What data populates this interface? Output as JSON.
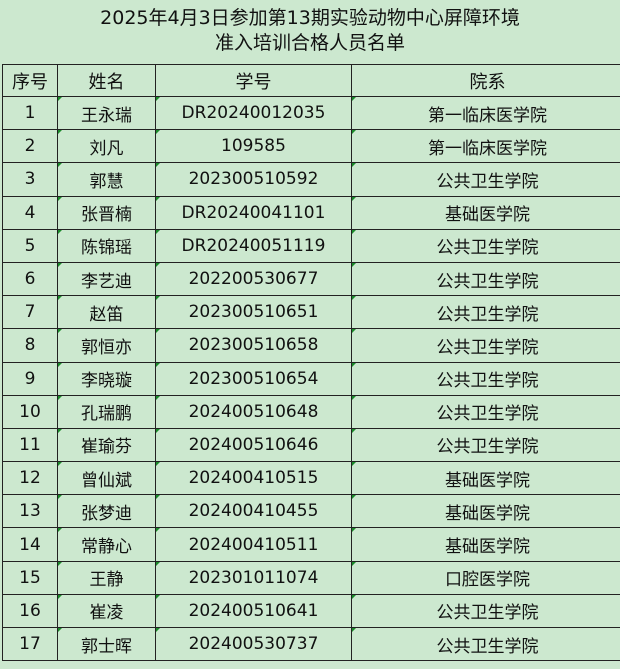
{
  "title_line1": "2025年4月3日参加第13期实验动物中心屏障环境",
  "title_line2": "准入培训合格人员名单",
  "headers": [
    "序号",
    "姓名",
    "学号",
    "院系"
  ],
  "rows": [
    [
      "1",
      "王永瑞",
      "DR20240012035",
      "第一临床医学院"
    ],
    [
      "2",
      "刘凡",
      "109585",
      "第一临床医学院"
    ],
    [
      "3",
      "郭慧",
      "202300510592",
      "公共卫生学院"
    ],
    [
      "4",
      "张晋楠",
      "DR20240041101",
      "基础医学院"
    ],
    [
      "5",
      "陈锦瑶",
      "DR20240051119",
      "公共卫生学院"
    ],
    [
      "6",
      "李艺迪",
      "202200530677",
      "公共卫生学院"
    ],
    [
      "7",
      "赵笛",
      "202300510651",
      "公共卫生学院"
    ],
    [
      "8",
      "郭恒亦",
      "202300510658",
      "公共卫生学院"
    ],
    [
      "9",
      "李晓璇",
      "202300510654",
      "公共卫生学院"
    ],
    [
      "10",
      "孔瑞鹏",
      "202400510648",
      "公共卫生学院"
    ],
    [
      "11",
      "崔瑜芬",
      "202400510646",
      "公共卫生学院"
    ],
    [
      "12",
      "曾仙斌",
      "202400410515",
      "基础医学院"
    ],
    [
      "13",
      "张梦迪",
      "202400410455",
      "基础医学院"
    ],
    [
      "14",
      "常静心",
      "202400410511",
      "基础医学院"
    ],
    [
      "15",
      "王静",
      "202301011074",
      "口腔医学院"
    ],
    [
      "16",
      "崔凌",
      "202400510641",
      "公共卫生学院"
    ],
    [
      "17",
      "郭士晖",
      "202400530737",
      "公共卫生学院"
    ]
  ]
}
